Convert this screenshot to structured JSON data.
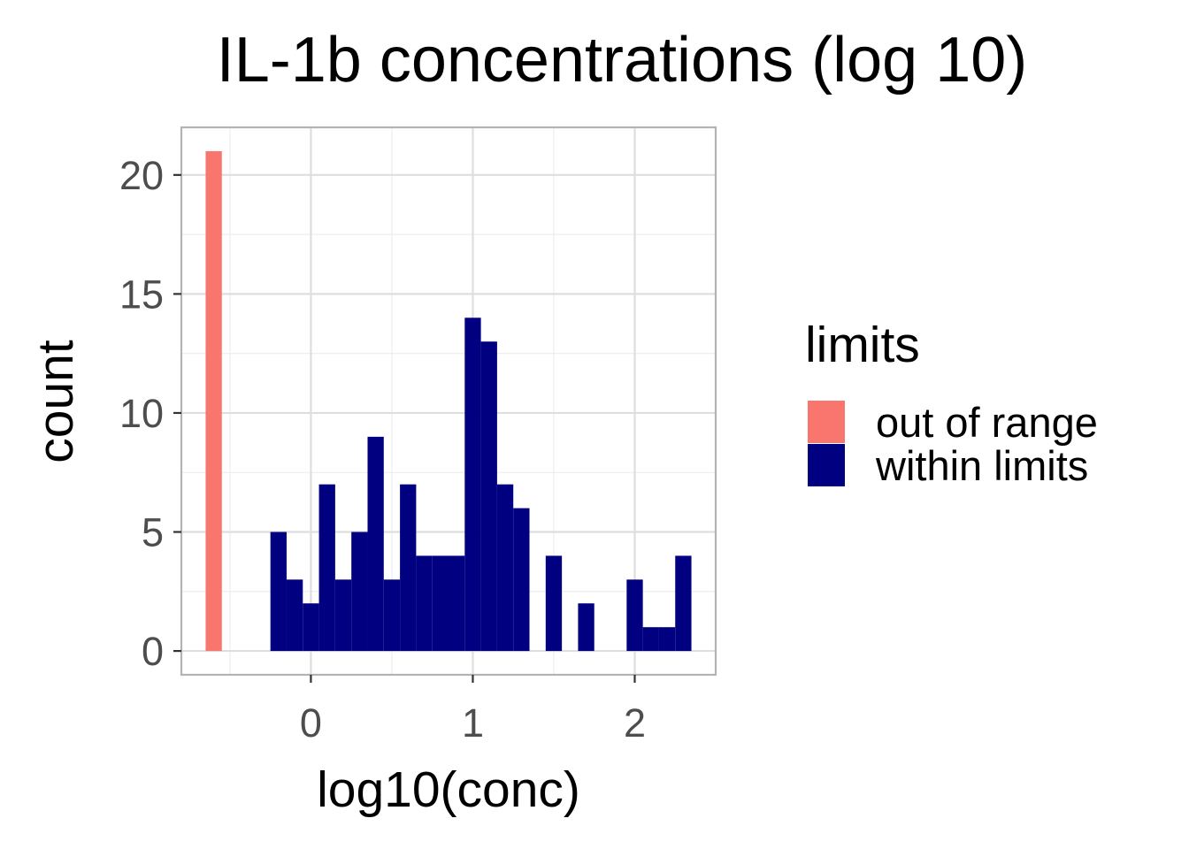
{
  "chart_data": {
    "type": "bar",
    "subtype": "histogram",
    "title": "IL-1b concentrations (log 10)",
    "xlabel": "log10(conc)",
    "ylabel": "count",
    "xlim": [
      -0.8,
      2.5
    ],
    "ylim": [
      -1,
      22
    ],
    "xticks": [
      0,
      1,
      2
    ],
    "yticks": [
      0,
      5,
      10,
      15,
      20
    ],
    "grid": true,
    "bin_width": 0.1,
    "legend": {
      "title": "limits",
      "position": "right"
    },
    "series": [
      {
        "name": "out of range",
        "color": "#F8766D",
        "bins": [
          {
            "x": -0.6,
            "count": 21
          }
        ]
      },
      {
        "name": "within limits",
        "color": "#000080",
        "bins": [
          {
            "x": -0.2,
            "count": 5
          },
          {
            "x": -0.1,
            "count": 3
          },
          {
            "x": 0.0,
            "count": 2
          },
          {
            "x": 0.1,
            "count": 7
          },
          {
            "x": 0.2,
            "count": 3
          },
          {
            "x": 0.3,
            "count": 5
          },
          {
            "x": 0.4,
            "count": 9
          },
          {
            "x": 0.5,
            "count": 3
          },
          {
            "x": 0.6,
            "count": 7
          },
          {
            "x": 0.7,
            "count": 4
          },
          {
            "x": 0.8,
            "count": 4
          },
          {
            "x": 0.9,
            "count": 4
          },
          {
            "x": 1.0,
            "count": 14
          },
          {
            "x": 1.1,
            "count": 13
          },
          {
            "x": 1.2,
            "count": 7
          },
          {
            "x": 1.3,
            "count": 6
          },
          {
            "x": 1.5,
            "count": 4
          },
          {
            "x": 1.7,
            "count": 2
          },
          {
            "x": 2.0,
            "count": 3
          },
          {
            "x": 2.1,
            "count": 1
          },
          {
            "x": 2.2,
            "count": 1
          },
          {
            "x": 2.3,
            "count": 4
          }
        ]
      }
    ]
  }
}
